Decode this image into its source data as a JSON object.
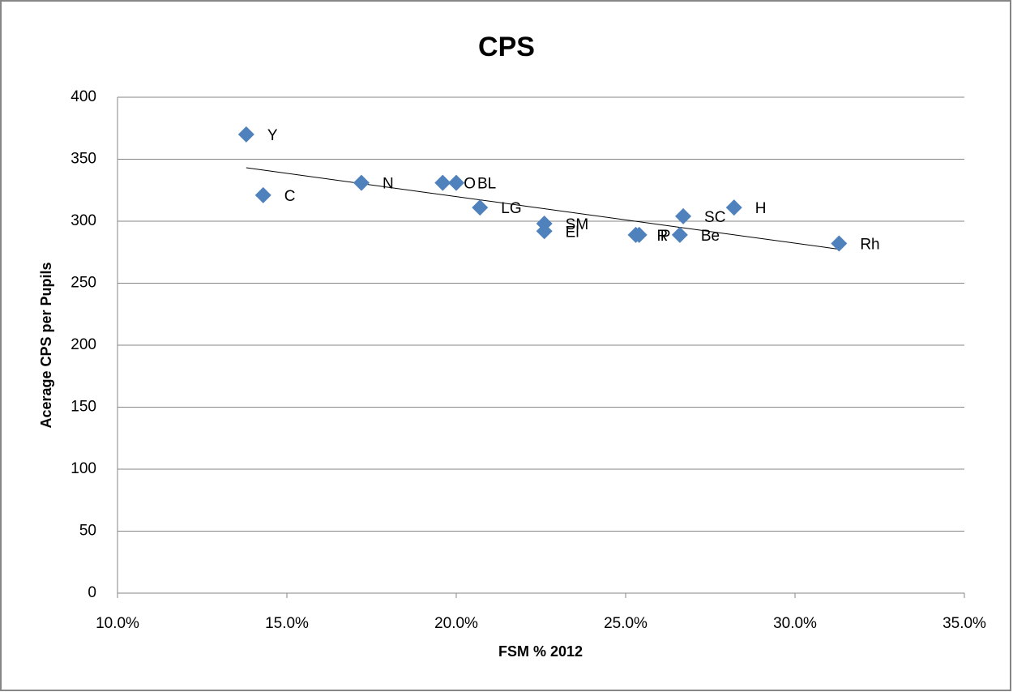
{
  "chart_data": {
    "type": "scatter",
    "title": "CPS",
    "x_label": "FSM % 2012",
    "y_label": "Acerage CPS per Pupils",
    "series": [
      {
        "color": "#4f81bd",
        "labels": [
          "Y",
          "C",
          "N",
          "O",
          "BL",
          "LG",
          "SM",
          "El",
          "R",
          "P",
          "Be",
          "SC",
          "H",
          "Rh"
        ],
        "x": [
          13.8,
          14.3,
          17.2,
          19.6,
          20.0,
          20.7,
          22.6,
          22.6,
          25.3,
          25.4,
          26.6,
          26.7,
          28.2,
          31.3
        ],
        "values": [
          370,
          321,
          331,
          331,
          331,
          311,
          298,
          292,
          289,
          289,
          289,
          304,
          311,
          282
        ]
      }
    ],
    "trendline": "linear",
    "xlim": [
      10,
      35
    ],
    "xticks": [
      {
        "value": 10,
        "label": "10.0%"
      },
      {
        "value": 15,
        "label": "15.0%"
      },
      {
        "value": 20,
        "label": "20.0%"
      },
      {
        "value": 25,
        "label": "25.0%"
      },
      {
        "value": 30,
        "label": "30.0%"
      },
      {
        "value": 35,
        "label": "35.0%"
      }
    ],
    "ylim": [
      0,
      400
    ],
    "yticks": [
      0,
      50,
      100,
      150,
      200,
      250,
      300,
      350,
      400
    ],
    "grid": true
  }
}
